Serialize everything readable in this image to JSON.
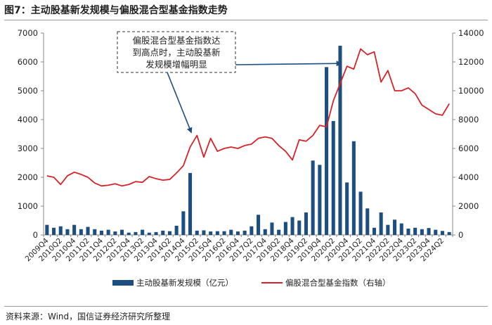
{
  "title": "图7：主动股基新发规模与偏股混合型基金指数走势",
  "source": "资料来源：Wind，国信证券经济研究所整理",
  "colors": {
    "bar": "#1c4e80",
    "line": "#d7222a",
    "axis": "#888888"
  },
  "chart_data": {
    "type": "bar+line",
    "categories": [
      "2009Q4",
      "2010Q1",
      "2010Q2",
      "2010Q3",
      "2010Q4",
      "2011Q1",
      "2011Q2",
      "2011Q3",
      "2011Q4",
      "2012Q1",
      "2012Q2",
      "2012Q3",
      "2012Q4",
      "2013Q1",
      "2013Q2",
      "2013Q3",
      "2013Q4",
      "2014Q1",
      "2014Q2",
      "2014Q3",
      "2014Q4",
      "2015Q1",
      "2015Q2",
      "2015Q3",
      "2015Q4",
      "2016Q1",
      "2016Q2",
      "2016Q3",
      "2016Q4",
      "2017Q1",
      "2017Q2",
      "2017Q3",
      "2017Q4",
      "2018Q1",
      "2018Q2",
      "2018Q3",
      "2018Q4",
      "2019Q1",
      "2019Q2",
      "2019Q3",
      "2019Q4",
      "2020Q1",
      "2020Q2",
      "2020Q3",
      "2020Q4",
      "2021Q1",
      "2021Q2",
      "2021Q3",
      "2021Q4",
      "2022Q1",
      "2022Q2",
      "2022Q3",
      "2022Q4",
      "2023Q1",
      "2023Q2",
      "2023Q3",
      "2023Q4",
      "2024Q1",
      "2024Q2",
      "2024Q3"
    ],
    "x_tick_labels": [
      "2009Q4",
      "2010Q2",
      "2010Q4",
      "2011Q2",
      "2011Q4",
      "2012Q2",
      "2012Q4",
      "2013Q2",
      "2013Q4",
      "2014Q2",
      "2014Q4",
      "2015Q2",
      "2015Q4",
      "2016Q2",
      "2016Q4",
      "2017Q2",
      "2017Q4",
      "2018Q2",
      "2018Q4",
      "2019Q2",
      "2019Q4",
      "2020Q2",
      "2020Q4",
      "2021Q2",
      "2021Q4",
      "2022Q2",
      "2022Q4",
      "2023Q2",
      "2023Q4",
      "2024Q2"
    ],
    "series": [
      {
        "name": "主动股基新发规模（亿元）",
        "type": "bar",
        "axis": "left",
        "values": [
          350,
          250,
          300,
          200,
          350,
          200,
          280,
          200,
          150,
          180,
          120,
          180,
          80,
          100,
          180,
          80,
          100,
          150,
          130,
          320,
          820,
          2150,
          150,
          160,
          120,
          130,
          130,
          180,
          120,
          150,
          300,
          700,
          200,
          430,
          180,
          450,
          620,
          500,
          780,
          2580,
          2430,
          5820,
          3950,
          6560,
          1820,
          3250,
          1500,
          920,
          250,
          780,
          350,
          530,
          400,
          220,
          250,
          200,
          240,
          180,
          140,
          100
        ]
      },
      {
        "name": "偏股混合型基金指数（右轴）",
        "type": "line",
        "axis": "right",
        "values": [
          4100,
          4000,
          3500,
          4100,
          4350,
          4200,
          4000,
          3600,
          3400,
          3450,
          3550,
          3400,
          3500,
          3700,
          3650,
          4050,
          3900,
          3800,
          3850,
          4300,
          4800,
          6100,
          6900,
          5400,
          6700,
          5800,
          6000,
          6100,
          6000,
          6200,
          6300,
          6700,
          6800,
          6700,
          6200,
          5800,
          5200,
          6600,
          6500,
          6900,
          7600,
          7500,
          9300,
          10500,
          11700,
          11500,
          12900,
          12500,
          12700,
          10600,
          11400,
          10000,
          10000,
          10200,
          9800,
          9000,
          8700,
          8400,
          8300,
          9100
        ]
      }
    ],
    "ylim_left": [
      0,
      7000
    ],
    "yticks_left": [
      0,
      1000,
      2000,
      3000,
      4000,
      5000,
      6000,
      7000
    ],
    "ylim_right": [
      0,
      14000
    ],
    "yticks_right": [
      0,
      2000,
      4000,
      6000,
      8000,
      10000,
      12000,
      14000
    ],
    "annotation": {
      "lines": [
        "偏股混合型基金指数达",
        "到高点时，主动股基新",
        "发规模增幅明显"
      ],
      "arrows_to": [
        "2015Q2",
        "2020Q4"
      ]
    },
    "legend_position": "bottom",
    "grid": false
  }
}
